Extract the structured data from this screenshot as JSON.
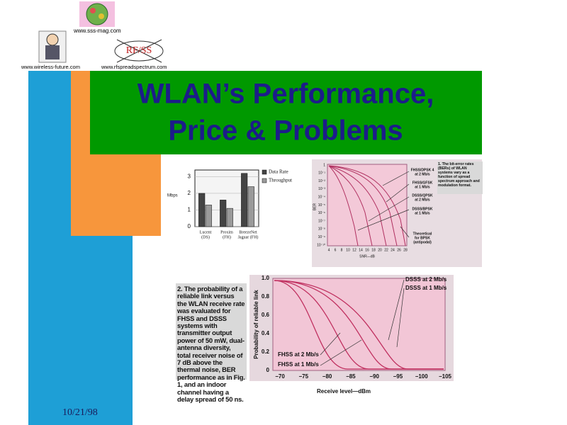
{
  "header": {
    "links": [
      "www.sss-mag.com",
      "www.wireless-future.com",
      "www.rfspreadspectrum.com"
    ],
    "logo_text": "RF/SS"
  },
  "title": [
    "WLAN’s Performance,",
    "Price & Problems"
  ],
  "footer": {
    "date": "10/21/98"
  },
  "figure_throughput": {
    "type": "bar",
    "y_label": "Mbps",
    "ylim": [
      0,
      3.4
    ],
    "yticks": [
      0,
      1,
      2,
      3
    ],
    "series": [
      {
        "name": "Data Rate",
        "color": "#444444",
        "values": [
          2,
          1.6,
          3.2
        ]
      },
      {
        "name": "Throughput",
        "color": "#9a9a9a",
        "values": [
          1.3,
          1.1,
          2.4
        ]
      }
    ],
    "categories": [
      [
        "Lucent",
        "(DS)"
      ],
      [
        "Proxim",
        "(FH)"
      ],
      [
        "BreezeNet",
        "Jaguar (FH)"
      ]
    ]
  },
  "figure_ber": {
    "caption": "1. The bit-error rates (BERs) of WLAN systems vary as a function of spread spectrum approach and modulation format.",
    "y_label": "BER",
    "x_label": "SNR—dB",
    "xticks": [
      "4",
      "6",
      "8",
      "10",
      "12",
      "14",
      "16",
      "18",
      "20",
      "22",
      "24",
      "26",
      "28"
    ],
    "yticks": [
      "1",
      "10⁻¹",
      "10⁻²",
      "10⁻³",
      "10⁻⁴",
      "10⁻⁵",
      "10⁻⁶",
      "10⁻⁷",
      "10⁻⁸",
      "10⁻⁹",
      "10⁻¹⁰"
    ],
    "curve_labels": [
      [
        "FHSS/DPSK 4",
        "at 2 Mb/s"
      ],
      [
        "FHSS/GFSK",
        "at 1 Mb/s"
      ],
      [
        "DSSS/QPSK",
        "at 2 Mb/s"
      ],
      [
        "DSSS/BPSK",
        "at 1 Mb/s"
      ],
      [
        "Theoretical",
        "for BPSK",
        "(antipodal)"
      ]
    ]
  },
  "figure_reliability": {
    "caption": "2. The probability of a reliable link versus the WLAN receive rate was evaluated for FHSS and DSSS systems with transmitter output power of 50 mW, dual-antenna diversity, total receiver noise of 7 dB above the thermal noise, BER performance as in Fig. 1, and an indoor channel having a delay spread of 50 ns.",
    "y_label": "Probability of reliable link",
    "x_label": "Receive level—dBm",
    "yticks": [
      "0",
      "0.2",
      "0.4",
      "0.6",
      "0.8",
      "1.0"
    ],
    "xticks": [
      "−70",
      "−75",
      "−80",
      "−85",
      "−90",
      "−95",
      "−100",
      "−105"
    ],
    "curve_labels": [
      "DSSS at 2 Mb/s",
      "DSSS at 1 Mb/s",
      "FHSS at 2 Mb/s",
      "FHSS at 1 Mb/s"
    ]
  }
}
